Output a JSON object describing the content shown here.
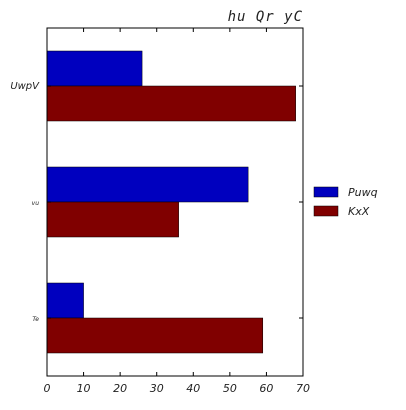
{
  "chart_data": {
    "type": "bar",
    "orientation": "horizontal",
    "title": "hu Qr yC",
    "categories": [
      "UwpV",
      "vu",
      "Te"
    ],
    "series": [
      {
        "name": "Puwq",
        "values": [
          26,
          55,
          10
        ],
        "color": "#0000bf"
      },
      {
        "name": "KxX",
        "values": [
          68,
          36,
          59
        ],
        "color": "#800000"
      }
    ],
    "xlim": [
      0,
      70
    ],
    "xticks": [
      0,
      10,
      20,
      30,
      40,
      50,
      60,
      70
    ],
    "xlabel": "",
    "ylabel": "",
    "grid": false,
    "legend_position": "right"
  }
}
